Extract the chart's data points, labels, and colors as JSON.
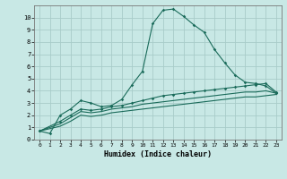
{
  "xlabel": "Humidex (Indice chaleur)",
  "background_color": "#c8e8e5",
  "grid_color": "#a8ccc9",
  "line_color": "#1a6b5a",
  "xlim": [
    -0.5,
    23.5
  ],
  "ylim": [
    0,
    11
  ],
  "xtick_labels": [
    "0",
    "1",
    "2",
    "3",
    "4",
    "5",
    "6",
    "7",
    "8",
    "9",
    "10",
    "11",
    "12",
    "13",
    "14",
    "15",
    "16",
    "17",
    "18",
    "19",
    "20",
    "21",
    "22",
    "23"
  ],
  "ytick_labels": [
    "0",
    "1",
    "2",
    "3",
    "4",
    "5",
    "6",
    "7",
    "8",
    "9",
    "10"
  ],
  "line1_x": [
    0,
    1,
    2,
    3,
    4,
    5,
    6,
    7,
    8,
    9,
    10,
    11,
    12,
    13,
    14,
    15,
    16,
    17,
    18,
    19,
    20,
    21,
    22,
    23
  ],
  "line1_y": [
    0.7,
    0.5,
    2.0,
    2.5,
    3.2,
    3.0,
    2.7,
    2.8,
    3.3,
    4.5,
    5.6,
    9.5,
    10.6,
    10.7,
    10.1,
    9.4,
    8.8,
    7.4,
    6.3,
    5.3,
    4.7,
    4.6,
    4.4,
    3.8
  ],
  "line2_x": [
    0,
    2,
    3,
    4,
    5,
    6,
    7,
    8,
    9,
    10,
    11,
    12,
    13,
    14,
    15,
    16,
    17,
    18,
    19,
    20,
    21,
    22,
    23
  ],
  "line2_y": [
    0.7,
    1.5,
    2.0,
    2.5,
    2.4,
    2.5,
    2.7,
    2.8,
    3.0,
    3.2,
    3.4,
    3.6,
    3.7,
    3.8,
    3.9,
    4.0,
    4.1,
    4.2,
    4.3,
    4.4,
    4.5,
    4.6,
    3.9
  ],
  "line3_x": [
    0,
    2,
    3,
    4,
    5,
    6,
    7,
    8,
    9,
    10,
    11,
    12,
    13,
    14,
    15,
    16,
    17,
    18,
    19,
    20,
    21,
    22,
    23
  ],
  "line3_y": [
    0.7,
    1.3,
    1.8,
    2.3,
    2.2,
    2.3,
    2.5,
    2.6,
    2.7,
    2.9,
    3.0,
    3.1,
    3.2,
    3.3,
    3.4,
    3.5,
    3.6,
    3.7,
    3.8,
    3.9,
    3.9,
    4.0,
    3.8
  ],
  "line4_x": [
    0,
    2,
    3,
    4,
    5,
    6,
    7,
    8,
    9,
    10,
    11,
    12,
    13,
    14,
    15,
    16,
    17,
    18,
    19,
    20,
    21,
    22,
    23
  ],
  "line4_y": [
    0.7,
    1.1,
    1.5,
    2.0,
    1.9,
    2.0,
    2.2,
    2.3,
    2.4,
    2.5,
    2.6,
    2.7,
    2.8,
    2.9,
    3.0,
    3.1,
    3.2,
    3.3,
    3.4,
    3.5,
    3.5,
    3.6,
    3.7
  ]
}
